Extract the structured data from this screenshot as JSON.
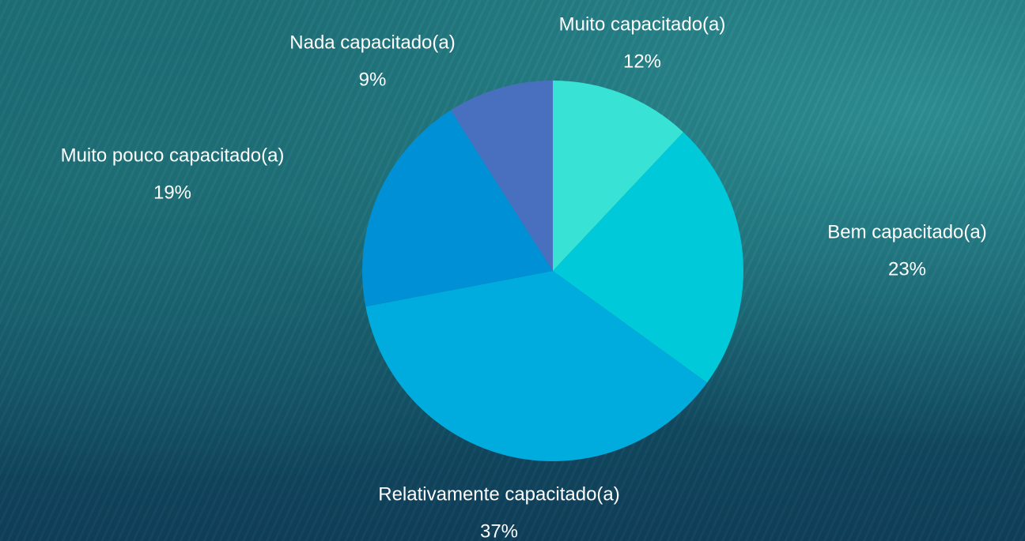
{
  "chart_data": {
    "type": "pie",
    "categories": [
      "Muito capacitado(a)",
      "Bem capacitado(a)",
      "Relativamente capacitado(a)",
      "Muito pouco capacitado(a)",
      "Nada capacitado(a)"
    ],
    "values": [
      12,
      23,
      37,
      19,
      9
    ],
    "value_labels": [
      "12%",
      "23%",
      "37%",
      "19%",
      "9%"
    ],
    "colors": [
      "#38e3d5",
      "#00cad9",
      "#00acdd",
      "#0090d6",
      "#4870bf"
    ]
  }
}
